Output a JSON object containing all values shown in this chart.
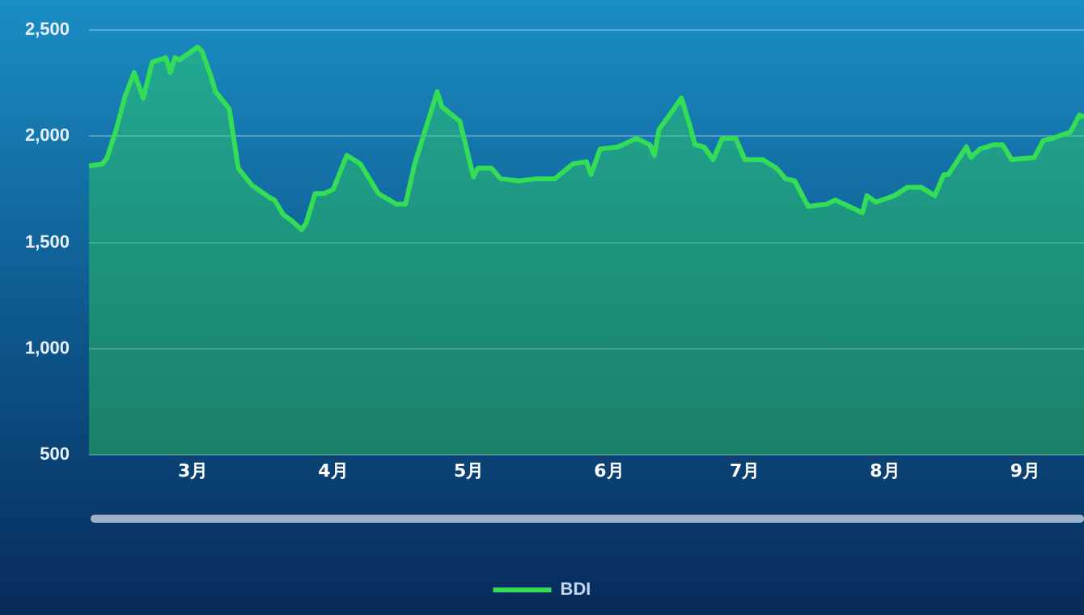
{
  "chart_data": {
    "type": "area",
    "x": [
      "--02-06",
      "--02-09",
      "--02-10",
      "--02-12",
      "--02-14",
      "--02-16",
      "--02-18",
      "--02-20",
      "--02-23",
      "--02-24",
      "--02-25",
      "--02-26",
      "--03-02",
      "--03-03",
      "--03-05",
      "--03-06",
      "--03-09",
      "--03-11",
      "--03-14",
      "--03-18",
      "--03-19",
      "--03-21",
      "--03-23",
      "--03-25",
      "--03-26",
      "--03-28",
      "--03-30",
      "--04-01",
      "--04-04",
      "--04-07",
      "--04-09",
      "--04-11",
      "--04-15",
      "--04-17",
      "--04-19",
      "--04-24",
      "--04-25",
      "--04-29",
      "--05-02",
      "--05-03",
      "--05-06",
      "--05-08",
      "--05-12",
      "--05-16",
      "--05-20",
      "--05-24",
      "--05-27",
      "--05-28",
      "--05-30",
      "--06-03",
      "--06-04",
      "--06-07",
      "--06-10",
      "--06-11",
      "--06-12",
      "--06-17",
      "--06-19",
      "--06-20",
      "--06-22",
      "--06-24",
      "--06-26",
      "--06-29",
      "--07-01",
      "--07-05",
      "--07-08",
      "--07-10",
      "--07-12",
      "--07-15",
      "--07-19",
      "--07-21",
      "--07-24",
      "--07-27",
      "--07-28",
      "--07-30",
      "--08-03",
      "--08-06",
      "--08-09",
      "--08-12",
      "--08-14",
      "--08-15",
      "--08-19",
      "--08-20",
      "--08-22",
      "--08-25",
      "--08-27",
      "--08-29",
      "--09-03",
      "--09-05",
      "--09-07",
      "--09-11",
      "--09-13",
      "--09-14"
    ],
    "series": [
      {
        "name": "BDI",
        "color": "#33dd55",
        "values": [
          1860,
          1870,
          1900,
          2030,
          2190,
          2300,
          2180,
          2350,
          2370,
          2300,
          2370,
          2360,
          2420,
          2400,
          2280,
          2210,
          2130,
          1850,
          1770,
          1710,
          1700,
          1630,
          1600,
          1560,
          1590,
          1730,
          1730,
          1750,
          1910,
          1870,
          1800,
          1730,
          1680,
          1680,
          1870,
          2210,
          2140,
          2070,
          1810,
          1850,
          1850,
          1800,
          1790,
          1800,
          1800,
          1870,
          1880,
          1820,
          1940,
          1950,
          1960,
          1990,
          1960,
          1910,
          2030,
          2180,
          2040,
          1960,
          1950,
          1890,
          1990,
          1990,
          1890,
          1890,
          1850,
          1800,
          1790,
          1670,
          1680,
          1700,
          1670,
          1640,
          1720,
          1690,
          1720,
          1760,
          1760,
          1720,
          1820,
          1820,
          1950,
          1900,
          1940,
          1960,
          1960,
          1890,
          1900,
          1980,
          1990,
          2020,
          2100,
          2090
        ]
      }
    ],
    "xlim": [
      "--02-06",
      "--09-14"
    ],
    "xticks": [
      {
        "value": "--03-01",
        "label": "3月"
      },
      {
        "value": "--04-01",
        "label": "4月"
      },
      {
        "value": "--05-01",
        "label": "5月"
      },
      {
        "value": "--06-01",
        "label": "6月"
      },
      {
        "value": "--07-01",
        "label": "7月"
      },
      {
        "value": "--08-01",
        "label": "8月"
      },
      {
        "value": "--09-01",
        "label": "9月"
      }
    ],
    "ylim": [
      500,
      2500
    ],
    "yticks": [
      500,
      {
        "value": 1000,
        "label": "1,000"
      },
      {
        "value": 1500,
        "label": "1,500"
      },
      {
        "value": 2000,
        "label": "2,000"
      },
      {
        "value": 2500,
        "label": "2,500"
      }
    ],
    "grid": "y",
    "legend": "bottom",
    "marker": "none",
    "line_style": "solid"
  }
}
